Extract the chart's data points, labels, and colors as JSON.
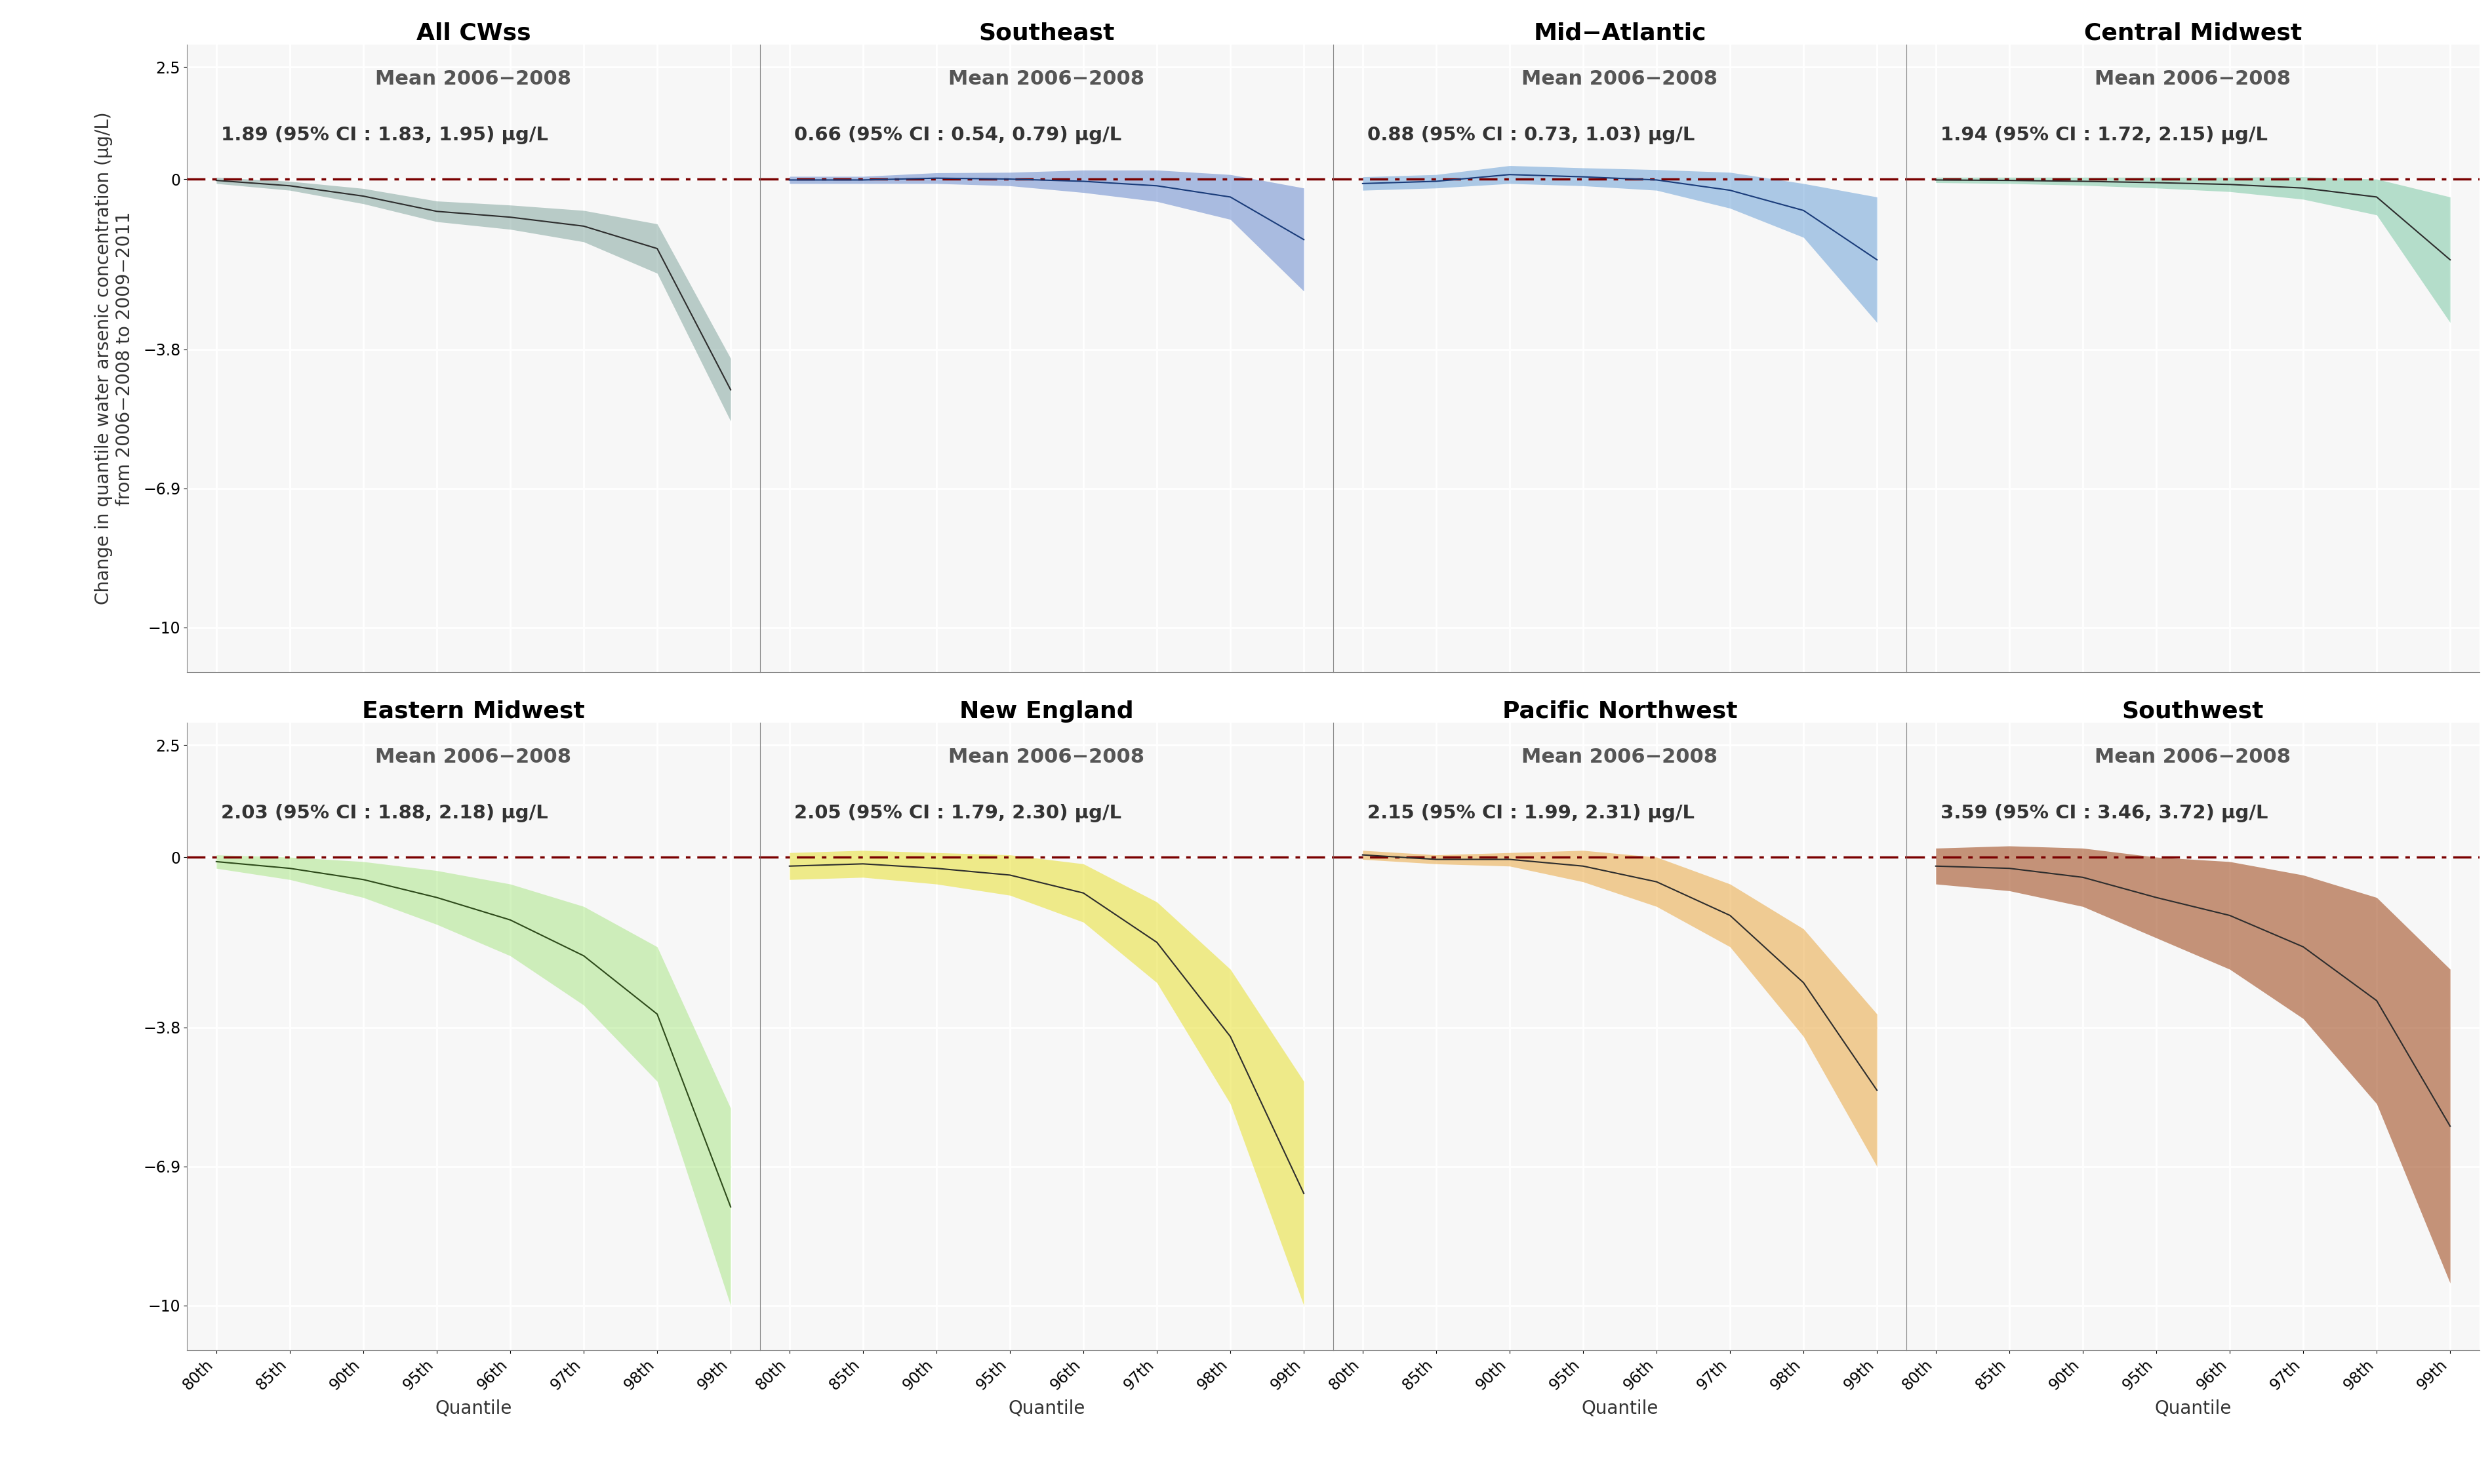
{
  "panels": [
    {
      "title": "All CWss",
      "subtitle": "Mean 2006−2008",
      "annotation": "1.89 (95% CI : 1.83, 1.95) μg/L",
      "line_color": "#2d2d2d",
      "fill_color": "#5a8a80",
      "fill_alpha": 0.4,
      "x": [
        0,
        1,
        2,
        3,
        4,
        5,
        6,
        7
      ],
      "y": [
        -0.03,
        -0.15,
        -0.38,
        -0.72,
        -0.85,
        -1.05,
        -1.55,
        -4.7
      ],
      "y_lower": [
        -0.1,
        -0.25,
        -0.55,
        -0.95,
        -1.12,
        -1.4,
        -2.1,
        -5.4
      ],
      "y_upper": [
        0.04,
        -0.05,
        -0.21,
        -0.49,
        -0.58,
        -0.7,
        -1.0,
        -4.0
      ]
    },
    {
      "title": "Southeast",
      "subtitle": "Mean 2006−2008",
      "annotation": "0.66 (95% CI : 0.54, 0.79) μg/L",
      "line_color": "#1a3c7a",
      "fill_color": "#4a72c4",
      "fill_alpha": 0.45,
      "x": [
        0,
        1,
        2,
        3,
        4,
        5,
        6,
        7
      ],
      "y": [
        -0.02,
        -0.02,
        0.02,
        0.0,
        -0.05,
        -0.15,
        -0.4,
        -1.35
      ],
      "y_lower": [
        -0.1,
        -0.1,
        -0.1,
        -0.15,
        -0.3,
        -0.5,
        -0.9,
        -2.5
      ],
      "y_upper": [
        0.06,
        0.06,
        0.14,
        0.15,
        0.2,
        0.2,
        0.1,
        -0.2
      ]
    },
    {
      "title": "Mid−Atlantic",
      "subtitle": "Mean 2006−2008",
      "annotation": "0.88 (95% CI : 0.73, 1.03) μg/L",
      "line_color": "#1a3c7a",
      "fill_color": "#5090d0",
      "fill_alpha": 0.45,
      "x": [
        0,
        1,
        2,
        3,
        4,
        5,
        6,
        7
      ],
      "y": [
        -0.1,
        -0.05,
        0.1,
        0.05,
        -0.02,
        -0.25,
        -0.7,
        -1.8
      ],
      "y_lower": [
        -0.25,
        -0.2,
        -0.1,
        -0.15,
        -0.25,
        -0.65,
        -1.3,
        -3.2
      ],
      "y_upper": [
        0.05,
        0.1,
        0.3,
        0.25,
        0.21,
        0.15,
        -0.1,
        -0.4
      ]
    },
    {
      "title": "Central Midwest",
      "subtitle": "Mean 2006−2008",
      "annotation": "1.94 (95% CI : 1.72, 2.15) μg/L",
      "line_color": "#2d2d2d",
      "fill_color": "#50b888",
      "fill_alpha": 0.4,
      "x": [
        0,
        1,
        2,
        3,
        4,
        5,
        6,
        7
      ],
      "y": [
        -0.02,
        -0.03,
        -0.05,
        -0.08,
        -0.12,
        -0.2,
        -0.4,
        -1.8
      ],
      "y_lower": [
        -0.08,
        -0.1,
        -0.14,
        -0.2,
        -0.28,
        -0.45,
        -0.8,
        -3.2
      ],
      "y_upper": [
        0.04,
        0.04,
        0.04,
        0.04,
        0.04,
        0.05,
        0.0,
        -0.4
      ]
    },
    {
      "title": "Eastern Midwest",
      "subtitle": "Mean 2006−2008",
      "annotation": "2.03 (95% CI : 1.88, 2.18) μg/L",
      "line_color": "#2d4a1a",
      "fill_color": "#90e060",
      "fill_alpha": 0.4,
      "x": [
        0,
        1,
        2,
        3,
        4,
        5,
        6,
        7
      ],
      "y": [
        -0.1,
        -0.25,
        -0.5,
        -0.9,
        -1.4,
        -2.2,
        -3.5,
        -7.8
      ],
      "y_lower": [
        -0.25,
        -0.5,
        -0.9,
        -1.5,
        -2.2,
        -3.3,
        -5.0,
        -10.0
      ],
      "y_upper": [
        0.05,
        0.0,
        -0.1,
        -0.3,
        -0.6,
        -1.1,
        -2.0,
        -5.6
      ]
    },
    {
      "title": "New England",
      "subtitle": "Mean 2006−2008",
      "annotation": "2.05 (95% CI : 1.79, 2.30) μg/L",
      "line_color": "#2d2d2d",
      "fill_color": "#e8e030",
      "fill_alpha": 0.55,
      "x": [
        0,
        1,
        2,
        3,
        4,
        5,
        6,
        7
      ],
      "y": [
        -0.2,
        -0.15,
        -0.25,
        -0.4,
        -0.8,
        -1.9,
        -4.0,
        -7.5
      ],
      "y_lower": [
        -0.5,
        -0.45,
        -0.6,
        -0.85,
        -1.45,
        -2.8,
        -5.5,
        -10.0
      ],
      "y_upper": [
        0.1,
        0.15,
        0.1,
        0.05,
        -0.15,
        -1.0,
        -2.5,
        -5.0
      ]
    },
    {
      "title": "Pacific Northwest",
      "subtitle": "Mean 2006−2008",
      "annotation": "2.15 (95% CI : 1.99, 2.31) μg/L",
      "line_color": "#2d2d2d",
      "fill_color": "#e8a030",
      "fill_alpha": 0.5,
      "x": [
        0,
        1,
        2,
        3,
        4,
        5,
        6,
        7
      ],
      "y": [
        0.05,
        -0.05,
        -0.05,
        -0.2,
        -0.55,
        -1.3,
        -2.8,
        -5.2
      ],
      "y_lower": [
        -0.05,
        -0.15,
        -0.2,
        -0.55,
        -1.1,
        -2.0,
        -4.0,
        -6.9
      ],
      "y_upper": [
        0.15,
        0.05,
        0.1,
        0.15,
        0.0,
        -0.6,
        -1.6,
        -3.5
      ]
    },
    {
      "title": "Southwest",
      "subtitle": "Mean 2006−2008",
      "annotation": "3.59 (95% CI : 3.46, 3.72) μg/L",
      "line_color": "#2d2d2d",
      "fill_color": "#9a4010",
      "fill_alpha": 0.55,
      "x": [
        0,
        1,
        2,
        3,
        4,
        5,
        6,
        7
      ],
      "y": [
        -0.2,
        -0.25,
        -0.45,
        -0.9,
        -1.3,
        -2.0,
        -3.2,
        -6.0
      ],
      "y_lower": [
        -0.6,
        -0.75,
        -1.1,
        -1.8,
        -2.5,
        -3.6,
        -5.5,
        -9.5
      ],
      "y_upper": [
        0.2,
        0.25,
        0.2,
        0.0,
        -0.1,
        -0.4,
        -0.9,
        -2.5
      ]
    }
  ],
  "xtick_labels": [
    "80th",
    "85th",
    "90th",
    "95th",
    "96th",
    "97th",
    "98th",
    "99th"
  ],
  "yticks": [
    2.5,
    0,
    -3.8,
    -6.9,
    -10
  ],
  "ytick_labels": [
    "2.5",
    "0",
    "−3.8",
    "−6.9",
    "−10"
  ],
  "ylabel": "Change in quantile water arsenic concentration (μg/L)\nfrom 2006−2008 to 2009−2011",
  "xlabel": "Quantile",
  "ylim": [
    -11,
    3.0
  ],
  "bg_color": "#f7f7f7",
  "grid_color": "#ffffff",
  "zero_line_color": "#7a0000",
  "title_fontsize": 26,
  "subtitle_fontsize": 22,
  "annot_fontsize": 21,
  "tick_fontsize": 17,
  "label_fontsize": 20
}
